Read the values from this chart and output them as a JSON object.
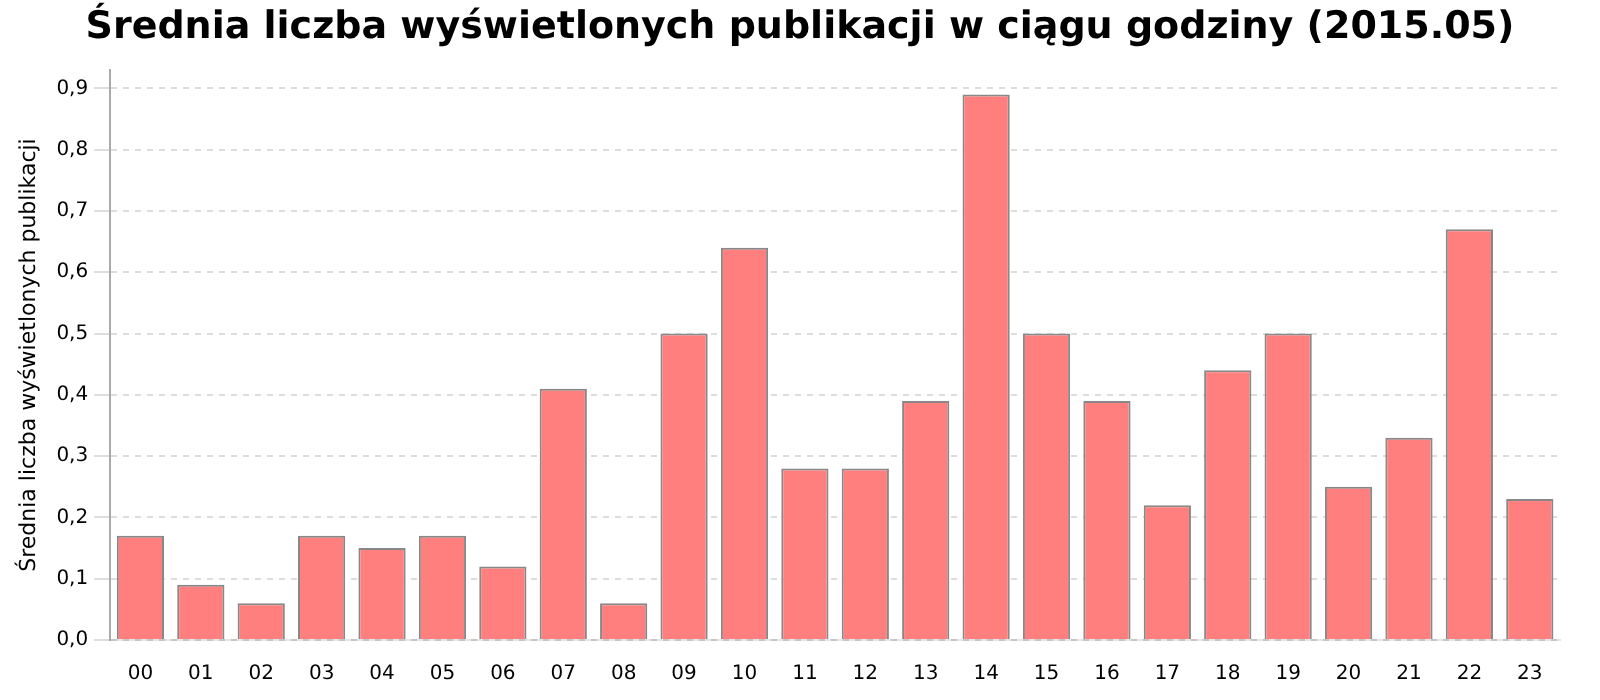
{
  "chart_data": {
    "type": "bar",
    "title": "Średnia liczba wyświetlonych publikacji w ciągu godziny (2015.05)",
    "ylabel": "Średnia liczba wyświetlonych publikacji",
    "categories": [
      "00",
      "01",
      "02",
      "03",
      "04",
      "05",
      "06",
      "07",
      "08",
      "09",
      "10",
      "11",
      "12",
      "13",
      "14",
      "15",
      "16",
      "17",
      "18",
      "19",
      "20",
      "21",
      "22",
      "23"
    ],
    "values": [
      0.17,
      0.09,
      0.06,
      0.17,
      0.15,
      0.17,
      0.12,
      0.41,
      0.06,
      0.5,
      0.64,
      0.28,
      0.28,
      0.39,
      0.89,
      0.5,
      0.39,
      0.22,
      0.44,
      0.5,
      0.25,
      0.33,
      0.67,
      0.23
    ],
    "color": "#ff7f7f",
    "ylim": [
      0,
      0.93
    ],
    "yticks": [
      {
        "value": 0,
        "label": "0,0"
      },
      {
        "value": 0.1,
        "label": "0,1"
      },
      {
        "value": 0.2,
        "label": "0,2"
      },
      {
        "value": 0.3,
        "label": "0,3"
      },
      {
        "value": 0.4,
        "label": "0,4"
      },
      {
        "value": 0.5,
        "label": "0,5"
      },
      {
        "value": 0.6,
        "label": "0,6"
      },
      {
        "value": 0.7,
        "label": "0,7"
      },
      {
        "value": 0.8,
        "label": "0,8"
      },
      {
        "value": 0.9,
        "label": "0,9"
      }
    ],
    "grid": "y"
  }
}
